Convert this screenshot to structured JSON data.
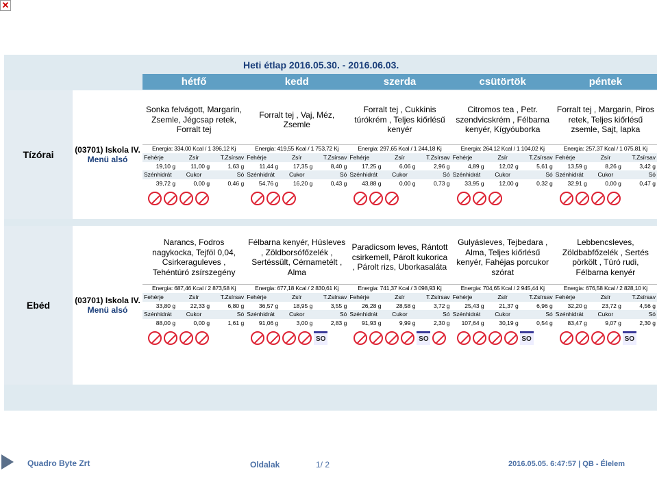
{
  "title": "Heti étlap 2016.05.30. - 2016.06.03.",
  "days": [
    "hétfő",
    "kedd",
    "szerda",
    "csütörtök",
    "péntek"
  ],
  "labels": {
    "feherje": "Fehérje",
    "zsir": "Zsír",
    "tzsirsav": "T.Zsírsav",
    "szenhidrat": "Szénhidrát",
    "cukor": "Cukor",
    "so": "Só"
  },
  "meals": [
    {
      "name": "Tízórai",
      "menu_line1": "(03701) Iskola IV.",
      "menu_line2": "Menü alsó",
      "items": [
        {
          "dish": "Sonka felvágott, Margarin, Zsemle, Jégcsap retek, Forralt tej",
          "energy": "Energia: 334,00 Kcal / 1 396,12 Kj",
          "feherje": "19,10 g",
          "zsir": "11,00 g",
          "tzsirsav": "1,63 g",
          "szenhidrat": "39,72 g",
          "cukor": "0,00 g",
          "so": "0,46 g",
          "icons": [
            "egg",
            "milk",
            "gluten",
            "milk2"
          ]
        },
        {
          "dish": "Forralt tej , Vaj, Méz, Zsemle",
          "energy": "Energia: 419,55 Kcal / 1 753,72 Kj",
          "feherje": "11,44 g",
          "zsir": "17,35 g",
          "tzsirsav": "8,40 g",
          "szenhidrat": "54,76 g",
          "cukor": "16,20 g",
          "so": "0,43 g",
          "icons": [
            "gluten",
            "milk",
            "milk2"
          ]
        },
        {
          "dish": "Forralt tej , Cukkinis túrókrém , Teljes kiőrlésű kenyér",
          "energy": "Energia: 297,65 Kcal / 1 244,18 Kj",
          "feherje": "17,25 g",
          "zsir": "6,06 g",
          "tzsirsav": "2,96 g",
          "szenhidrat": "43,88 g",
          "cukor": "0,00 g",
          "so": "0,73 g",
          "icons": [
            "milk",
            "gluten",
            "milk2"
          ]
        },
        {
          "dish": "Citromos tea , Petr. szendvicskrém , Félbarna kenyér, Kígyóuborka",
          "energy": "Energia: 264,12 Kcal / 1 104,02 Kj",
          "feherje": "4,89 g",
          "zsir": "12,02 g",
          "tzsirsav": "5,61 g",
          "szenhidrat": "33,95 g",
          "cukor": "12,00 g",
          "so": "0,32 g",
          "icons": [
            "gluten",
            "milk",
            "milk2"
          ]
        },
        {
          "dish": "Forralt tej , Margarin, Piros retek, Teljes kiőrlésű zsemle, Sajt, lapka",
          "energy": "Energia: 257,37 Kcal / 1 075,81 Kj",
          "feherje": "13,59 g",
          "zsir": "8,26 g",
          "tzsirsav": "3,42 g",
          "szenhidrat": "32,91 g",
          "cukor": "0,00 g",
          "so": "0,47 g",
          "icons": [
            "egg",
            "milk",
            "gluten",
            "milk2"
          ]
        }
      ]
    },
    {
      "name": "Ebéd",
      "menu_line1": "(03701) Iskola IV.",
      "menu_line2": "Menü alsó",
      "items": [
        {
          "dish": "Narancs, Fodros nagykocka, Tejföl 0,04, Csirkeraguleves , Tehéntúró zsírszegény",
          "energy": "Energia: 687,46 Kcal / 2 873,58 Kj",
          "feherje": "33,80 g",
          "zsir": "22,33 g",
          "tzsirsav": "6,80 g",
          "szenhidrat": "88,00 g",
          "cukor": "0,00 g",
          "so": "1,61 g",
          "icons": [
            "egg",
            "milk",
            "gluten",
            "milk2"
          ]
        },
        {
          "dish": "Félbarna kenyér, Húsleves , Zöldborsófőzelék , Sertéssült, Cérnametélt , Alma",
          "energy": "Energia: 677,18 Kcal / 2 830,61 Kj",
          "feherje": "36,57 g",
          "zsir": "18,95 g",
          "tzsirsav": "3,55 g",
          "szenhidrat": "91,06 g",
          "cukor": "3,00 g",
          "so": "2,83 g",
          "icons": [
            "celery",
            "milk",
            "gluten",
            "egg",
            "so2"
          ]
        },
        {
          "dish": "Paradicsom leves, Rántott csirkemell, Párolt kukorica , Párolt rizs, Uborkasaláta",
          "energy": "Energia: 741,37 Kcal / 3 098,93 Kj",
          "feherje": "26,28 g",
          "zsir": "28,58 g",
          "tzsirsav": "3,72 g",
          "szenhidrat": "91,93 g",
          "cukor": "9,99 g",
          "so": "2,30 g",
          "icons": [
            "milk",
            "mustard",
            "egg",
            "gluten",
            "so2",
            "celery"
          ]
        },
        {
          "dish": "Gulyásleves, Tejbedara , Alma, Teljes kiőrlésű kenyér, Fahéjas porcukor szórat",
          "energy": "Energia: 704,65 Kcal / 2 945,44 Kj",
          "feherje": "25,43 g",
          "zsir": "21,37 g",
          "tzsirsav": "6,96 g",
          "szenhidrat": "107,64 g",
          "cukor": "30,19 g",
          "so": "0,54 g",
          "icons": [
            "egg",
            "milk",
            "gluten",
            "celery",
            "so2"
          ]
        },
        {
          "dish": "Lebbencsleves, Zöldbabfőzelék , Sertés pörkölt , Túró rudi, Félbarna kenyér",
          "energy": "Energia: 676,58 Kcal / 2 828,10 Kj",
          "feherje": "32,20 g",
          "zsir": "23,72 g",
          "tzsirsav": "4,56 g",
          "szenhidrat": "83,47 g",
          "cukor": "9,07 g",
          "so": "2,30 g",
          "icons": [
            "egg",
            "milk",
            "gluten",
            "celery",
            "so2"
          ]
        }
      ]
    }
  ],
  "footer": {
    "company": "Quadro Byte Zrt",
    "page_label": "Oldalak",
    "page_num": "1/ 2",
    "timestamp": "2016.05.05. 6:47:57 | QB - Élelem"
  }
}
